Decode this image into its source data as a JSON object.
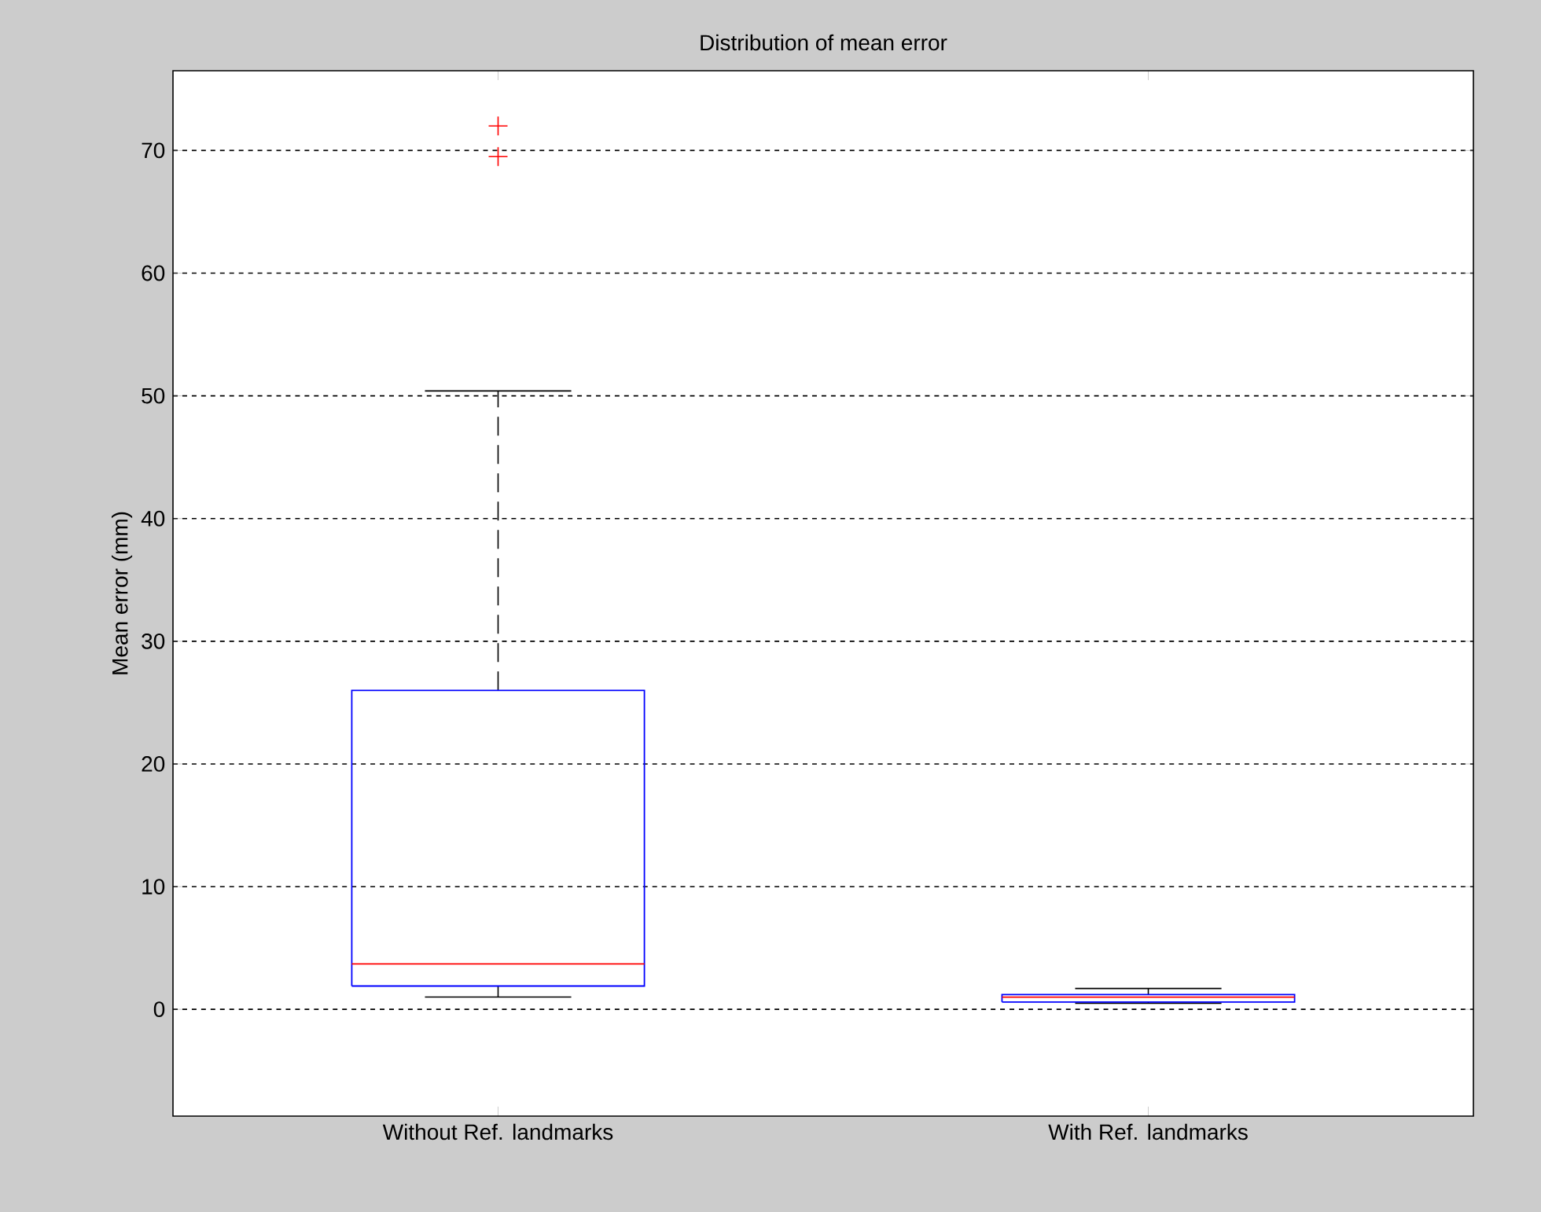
{
  "chart_data": {
    "type": "box",
    "title": "Distribution of mean error",
    "ylabel": "Mean error (mm)",
    "categories": [
      "Without Ref. landmarks",
      "With Ref. landmarks"
    ],
    "series": [
      {
        "color": "#0000ff",
        "boxes": [
          {
            "low": 1.0,
            "q1": 1.9,
            "median": 3.7,
            "q3": 26.0,
            "high": 50.4,
            "outliers": [
              69.5,
              72.0
            ]
          },
          {
            "low": 0.5,
            "q1": 0.6,
            "median": 1.0,
            "q3": 1.2,
            "high": 1.7
          }
        ]
      }
    ],
    "ylim": [
      -8.7,
      76.5
    ],
    "yticks": [
      0,
      10,
      20,
      30,
      40,
      50,
      60,
      70
    ],
    "grid": "y",
    "marker": "cross"
  }
}
